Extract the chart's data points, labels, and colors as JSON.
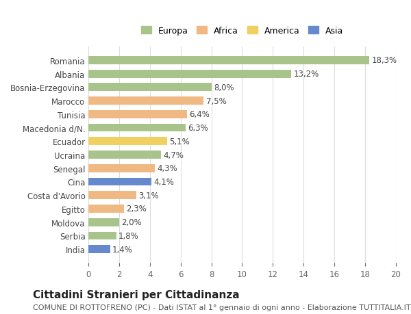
{
  "countries": [
    "Romania",
    "Albania",
    "Bosnia-Erzegovina",
    "Marocco",
    "Tunisia",
    "Macedonia d/N.",
    "Ecuador",
    "Ucraina",
    "Senegal",
    "Cina",
    "Costa d'Avorio",
    "Egitto",
    "Moldova",
    "Serbia",
    "India"
  ],
  "values": [
    18.3,
    13.2,
    8.0,
    7.5,
    6.4,
    6.3,
    5.1,
    4.7,
    4.3,
    4.1,
    3.1,
    2.3,
    2.0,
    1.8,
    1.4
  ],
  "regions": [
    "Europa",
    "Europa",
    "Europa",
    "Africa",
    "Africa",
    "Europa",
    "America",
    "Europa",
    "Africa",
    "Asia",
    "Africa",
    "Africa",
    "Europa",
    "Europa",
    "Asia"
  ],
  "region_colors": {
    "Europa": "#a8c48a",
    "Africa": "#f0b882",
    "America": "#f0d060",
    "Asia": "#6688cc"
  },
  "legend_order": [
    "Europa",
    "Africa",
    "America",
    "Asia"
  ],
  "title": "Cittadini Stranieri per Cittadinanza",
  "subtitle": "COMUNE DI ROTTOFRENO (PC) - Dati ISTAT al 1° gennaio di ogni anno - Elaborazione TUTTITALIA.IT",
  "xlim": [
    0,
    20
  ],
  "xticks": [
    0,
    2,
    4,
    6,
    8,
    10,
    12,
    14,
    16,
    18,
    20
  ],
  "background_color": "#ffffff",
  "grid_color": "#dddddd",
  "bar_height": 0.6,
  "title_fontsize": 11,
  "subtitle_fontsize": 8,
  "label_fontsize": 8.5,
  "tick_fontsize": 8.5,
  "legend_fontsize": 9
}
